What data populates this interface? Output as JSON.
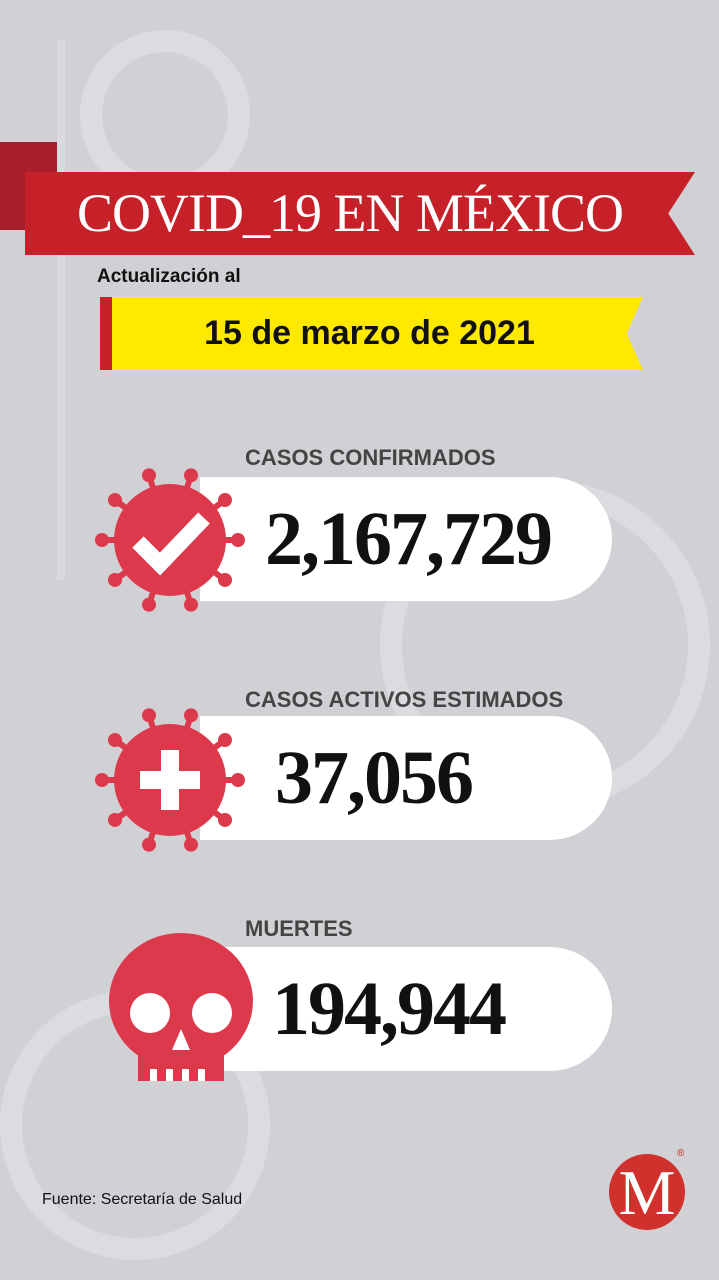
{
  "header": {
    "title": "COVID_19 EN MÉXICO",
    "update_label": "Actualización al",
    "date": "15 de marzo de 2021"
  },
  "stats": [
    {
      "label": "CASOS CONFIRMADOS",
      "value": "2,167,729",
      "icon": "virus-check-icon"
    },
    {
      "label": "CASOS ACTIVOS ESTIMADOS",
      "value": "37,056",
      "icon": "virus-cross-icon"
    },
    {
      "label": "MUERTES",
      "value": "194,944",
      "icon": "skull-icon"
    }
  ],
  "footer": {
    "source": "Fuente: Secretaría de Salud",
    "logo_letter": "M",
    "logo_mark": "®"
  },
  "colors": {
    "background": "#d1d1d5",
    "ribbon_red": "#c62128",
    "banner_yellow": "#ffe900",
    "icon_red": "#dc3a4c",
    "logo_red": "#d0312d"
  }
}
